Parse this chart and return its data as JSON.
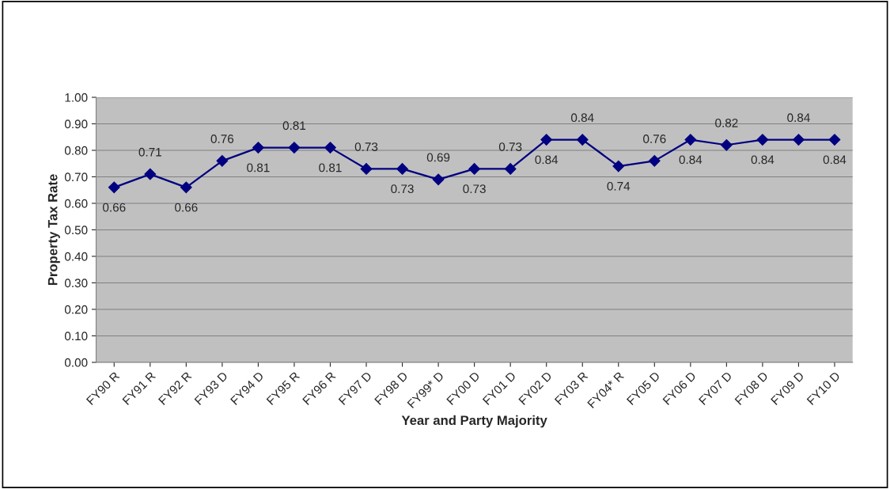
{
  "chart_data": {
    "type": "line",
    "xlabel": "Year and Party Majority",
    "ylabel": "Property Tax Rate",
    "categories": [
      "FY90 R",
      "FY91 R",
      "FY92 R",
      "FY93 D",
      "FY94 D",
      "FY95 R",
      "FY96 R",
      "FY97 D",
      "FY98 D",
      "FY99* D",
      "FY00 D",
      "FY01 D",
      "FY02 D",
      "FY03 R",
      "FY04* R",
      "FY05 D",
      "FY06 D",
      "FY07 D",
      "FY08 D",
      "FY09 D",
      "FY10 D"
    ],
    "series": [
      {
        "color": "#000080",
        "values": [
          0.66,
          0.71,
          0.66,
          0.76,
          0.81,
          0.81,
          0.81,
          0.73,
          0.73,
          0.69,
          0.73,
          0.73,
          0.84,
          0.84,
          0.74,
          0.76,
          0.84,
          0.82,
          0.84,
          0.84,
          0.84
        ]
      }
    ],
    "ylim": [
      0,
      1
    ],
    "yticks": [
      {
        "value": 0,
        "label": "0.00"
      },
      {
        "value": 0.1,
        "label": "0.10"
      },
      {
        "value": 0.2,
        "label": "0.20"
      },
      {
        "value": 0.3,
        "label": "0.30"
      },
      {
        "value": 0.4,
        "label": "0.40"
      },
      {
        "value": 0.5,
        "label": "0.50"
      },
      {
        "value": 0.6,
        "label": "0.60"
      },
      {
        "value": 0.7,
        "label": "0.70"
      },
      {
        "value": 0.8,
        "label": "0.80"
      },
      {
        "value": 0.9,
        "label": "0.90"
      },
      {
        "value": 1,
        "label": "1.00"
      }
    ],
    "grid": "y",
    "marker": "diamond",
    "line_style": "solid",
    "data_labels": true,
    "legend": false
  }
}
